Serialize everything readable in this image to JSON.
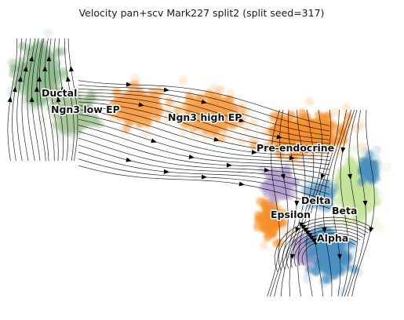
{
  "chart_data": {
    "type": "scatter",
    "title": "Velocity pan+scv Mark227 split2 (split seed=317)",
    "xlabel": "",
    "ylabel": "",
    "grid": false,
    "legend": "none",
    "overlay": "velocity streamlines",
    "clusters": [
      {
        "name": "Ductal",
        "color": "#8fbc8f"
      },
      {
        "name": "Ngn3 low EP",
        "color": "#a8c79a"
      },
      {
        "name": "Ngn3 high EP",
        "color": "#f7a048"
      },
      {
        "name": "Pre-endocrine",
        "color": "#f58f2a"
      },
      {
        "name": "Beta",
        "color": "#c4e39a"
      },
      {
        "name": "Alpha",
        "color": "#4a8fc0"
      },
      {
        "name": "Delta",
        "color": "#6ea6cd"
      },
      {
        "name": "Epsilon",
        "color": "#b3a3cf"
      }
    ]
  }
}
